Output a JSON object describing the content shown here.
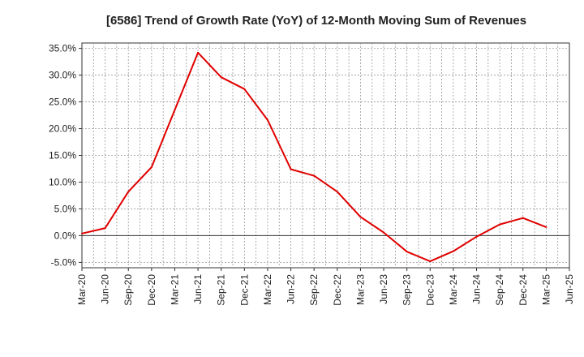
{
  "chart_data": {
    "type": "line",
    "title": "[6586]  Trend of Growth Rate (YoY) of 12-Month Moving Sum of Revenues",
    "xlabel": "",
    "ylabel": "",
    "ylim": [
      -6,
      36
    ],
    "y_ticks": [
      "35.0%",
      "30.0%",
      "25.0%",
      "20.0%",
      "15.0%",
      "10.0%",
      "5.0%",
      "0.0%",
      "-5.0%"
    ],
    "x_ticks": [
      "Mar-20",
      "Jun-20",
      "Sep-20",
      "Dec-20",
      "Mar-21",
      "Jun-21",
      "Sep-21",
      "Dec-21",
      "Mar-22",
      "Jun-22",
      "Sep-22",
      "Dec-22",
      "Mar-23",
      "Jun-23",
      "Sep-23",
      "Dec-23",
      "Mar-24",
      "Jun-24",
      "Sep-24",
      "Dec-24",
      "Mar-25",
      "Jun-25"
    ],
    "grid": true,
    "series": [
      {
        "color": "#e00000",
        "x": [
          "Mar-20",
          "Jun-20",
          "Sep-20",
          "Dec-20",
          "Mar-21",
          "Jun-21",
          "Sep-21",
          "Dec-21",
          "Mar-22",
          "Jun-22",
          "Sep-22",
          "Dec-22",
          "Mar-23",
          "Jun-23",
          "Sep-23",
          "Dec-23",
          "Mar-24",
          "Jun-24",
          "Sep-24",
          "Dec-24",
          "Mar-25"
        ],
        "values": [
          0.4,
          1.4,
          8.2,
          12.8,
          23.5,
          34.2,
          29.6,
          27.4,
          21.6,
          12.4,
          11.2,
          8.2,
          3.5,
          0.6,
          -3.0,
          -4.8,
          -2.9,
          -0.2,
          2.1,
          3.3,
          1.6
        ]
      }
    ]
  }
}
